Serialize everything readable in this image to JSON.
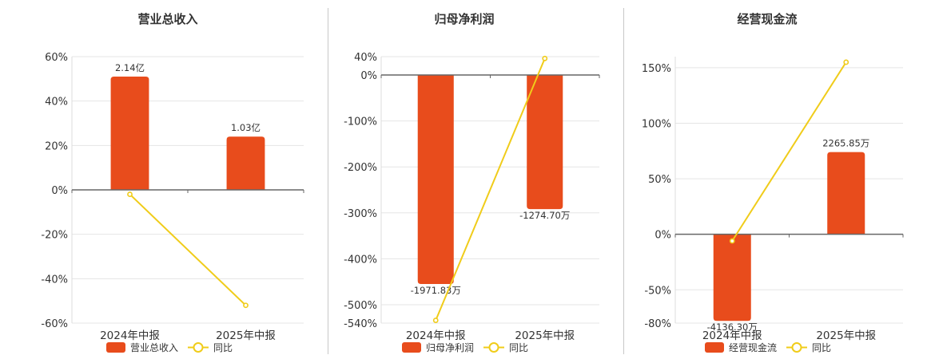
{
  "chart_data": [
    {
      "type": "bar",
      "title": "营业总收入",
      "categories": [
        "2024年中报",
        "2025年中报"
      ],
      "series": [
        {
          "name": "营业总收入",
          "type": "bar",
          "values": [
            51,
            24
          ],
          "labels": [
            "2.14亿",
            "1.03亿"
          ]
        },
        {
          "name": "同比",
          "type": "line",
          "values": [
            -2,
            -52
          ]
        }
      ],
      "ylim": [
        -60,
        60
      ],
      "ticks": [
        60,
        40,
        20,
        0,
        -20,
        -40,
        -60
      ],
      "tick_labels": [
        "60%",
        "40%",
        "20%",
        "0%",
        "-20%",
        "-40%",
        "-60%"
      ],
      "grid": true,
      "legend_position": "bottom-center"
    },
    {
      "type": "bar",
      "title": "归母净利润",
      "categories": [
        "2024年中报",
        "2025年中报"
      ],
      "series": [
        {
          "name": "归母净利润",
          "type": "bar",
          "values": [
            -455,
            -292
          ],
          "labels": [
            "-1971.83万",
            "-1274.70万"
          ]
        },
        {
          "name": "同比",
          "type": "line",
          "values": [
            -534,
            36
          ]
        }
      ],
      "ylim": [
        -540,
        40
      ],
      "ticks": [
        40,
        0,
        -100,
        -200,
        -300,
        -400,
        -500,
        -540
      ],
      "tick_labels": [
        "40%",
        "0%",
        "-100%",
        "-200%",
        "-300%",
        "-400%",
        "-500%",
        "-540%"
      ],
      "grid": true,
      "legend_position": "bottom-center"
    },
    {
      "type": "bar",
      "title": "经营现金流",
      "categories": [
        "2024年中报",
        "2025年中报"
      ],
      "series": [
        {
          "name": "经营现金流",
          "type": "bar",
          "values": [
            -78,
            74
          ],
          "labels": [
            "-4136.30万",
            "2265.85万"
          ]
        },
        {
          "name": "同比",
          "type": "line",
          "values": [
            -6,
            155
          ]
        }
      ],
      "ylim": [
        -80,
        160
      ],
      "ticks": [
        150,
        100,
        50,
        0,
        -50,
        -80
      ],
      "tick_labels": [
        "150%",
        "100%",
        "50%",
        "0%",
        "-50%",
        "-80%"
      ],
      "grid": true,
      "legend_position": "bottom-center"
    }
  ],
  "colors": {
    "bar": "#e84c1c",
    "line": "#f0cc1a",
    "axis": "#666666",
    "grid": "#e5e5e5",
    "text": "#333333",
    "divider": "#c8c8c8"
  }
}
